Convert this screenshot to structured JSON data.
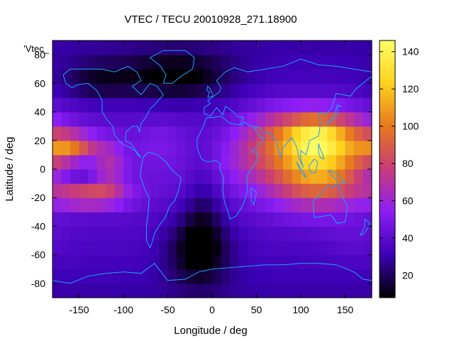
{
  "chart_data": {
    "type": "heatmap",
    "title": "VTEC / TECU 20010928_271.18900",
    "xlabel": "Longitude / deg",
    "ylabel": "Latitude / deg",
    "key_label": "'Vtec_",
    "xlim": [
      -180,
      180
    ],
    "ylim": [
      -90,
      90
    ],
    "x_ticks": [
      -150,
      -100,
      -50,
      0,
      50,
      100,
      150
    ],
    "y_ticks": [
      -80,
      -60,
      -40,
      -20,
      0,
      20,
      40,
      60,
      80
    ],
    "colorbar": {
      "range": [
        8,
        146
      ],
      "ticks": [
        20,
        40,
        60,
        80,
        100,
        120,
        140
      ]
    },
    "grid_step_deg": 10,
    "coastline_color": "#1ea0ff",
    "colormap": [
      "#000000",
      "#3c00b4",
      "#8c1ef5",
      "#c83c7a",
      "#e6781e",
      "#ffd21e",
      "#ffff64"
    ],
    "features": [
      {
        "lon": 125,
        "lat": 20,
        "sigma_lon": 42,
        "sigma_lat": 14,
        "value": 70
      },
      {
        "lon": 110,
        "lat": -5,
        "sigma_lon": 38,
        "sigma_lat": 16,
        "value": 45
      },
      {
        "lon": 135,
        "lat": -10,
        "sigma_lon": 28,
        "sigma_lat": 12,
        "value": 15
      },
      {
        "lon": 115,
        "lat": 25,
        "sigma_lon": 20,
        "sigma_lat": 10,
        "value": 25
      },
      {
        "lon": -160,
        "lat": 15,
        "sigma_lon": 22,
        "sigma_lat": 7,
        "value": 50
      },
      {
        "lon": -140,
        "lat": -18,
        "sigma_lon": 30,
        "sigma_lat": 6,
        "value": 45
      },
      {
        "lon": -115,
        "lat": 2,
        "sigma_lon": 12,
        "sigma_lat": 12,
        "value": 22
      },
      {
        "lon": -150,
        "lat": 0,
        "sigma_lon": 15,
        "sigma_lat": 10,
        "value": -10
      },
      {
        "lon": -15,
        "lat": -55,
        "sigma_lon": 25,
        "sigma_lat": 18,
        "value": -30
      },
      {
        "lon": -10,
        "lat": -25,
        "sigma_lon": 14,
        "sigma_lat": 25,
        "value": -12
      },
      {
        "lon": -40,
        "lat": 65,
        "sigma_lon": 45,
        "sigma_lat": 12,
        "value": -28
      },
      {
        "lon": -130,
        "lat": 62,
        "sigma_lon": 30,
        "sigma_lat": 10,
        "value": -18
      },
      {
        "lon": 40,
        "lat": 10,
        "sigma_lon": 25,
        "sigma_lat": 15,
        "value": 12
      },
      {
        "lon": 70,
        "lat": 25,
        "sigma_lon": 25,
        "sigma_lat": 15,
        "value": 15
      },
      {
        "lon": -60,
        "lat": 20,
        "sigma_lon": 20,
        "sigma_lat": 10,
        "value": 8
      },
      {
        "lon": 160,
        "lat": -50,
        "sigma_lon": 25,
        "sigma_lat": 12,
        "value": 5
      }
    ],
    "coastlines": [
      {
        "name": "north-america",
        "points": [
          [
            -168,
            66
          ],
          [
            -160,
            70
          ],
          [
            -140,
            70
          ],
          [
            -125,
            70
          ],
          [
            -110,
            68
          ],
          [
            -95,
            72
          ],
          [
            -85,
            68
          ],
          [
            -80,
            62
          ],
          [
            -90,
            58
          ],
          [
            -80,
            52
          ],
          [
            -70,
            60
          ],
          [
            -62,
            58
          ],
          [
            -55,
            52
          ],
          [
            -65,
            45
          ],
          [
            -70,
            42
          ],
          [
            -75,
            36
          ],
          [
            -80,
            32
          ],
          [
            -82,
            26
          ],
          [
            -84,
            30
          ],
          [
            -90,
            30
          ],
          [
            -97,
            26
          ],
          [
            -98,
            20
          ],
          [
            -92,
            18
          ],
          [
            -88,
            15
          ],
          [
            -84,
            10
          ],
          [
            -80,
            8
          ],
          [
            -85,
            12
          ],
          [
            -92,
            15
          ],
          [
            -100,
            17
          ],
          [
            -105,
            20
          ],
          [
            -110,
            24
          ],
          [
            -112,
            30
          ],
          [
            -118,
            34
          ],
          [
            -124,
            40
          ],
          [
            -124,
            48
          ],
          [
            -130,
            55
          ],
          [
            -140,
            60
          ],
          [
            -152,
            59
          ],
          [
            -158,
            57
          ],
          [
            -165,
            60
          ],
          [
            -168,
            66
          ]
        ]
      },
      {
        "name": "greenland",
        "points": [
          [
            -55,
            60
          ],
          [
            -45,
            60
          ],
          [
            -35,
            65
          ],
          [
            -22,
            70
          ],
          [
            -20,
            78
          ],
          [
            -30,
            83
          ],
          [
            -55,
            83
          ],
          [
            -70,
            78
          ],
          [
            -58,
            72
          ],
          [
            -52,
            66
          ],
          [
            -55,
            60
          ]
        ]
      },
      {
        "name": "south-america",
        "points": [
          [
            -78,
            8
          ],
          [
            -72,
            12
          ],
          [
            -62,
            10
          ],
          [
            -52,
            5
          ],
          [
            -45,
            -1
          ],
          [
            -35,
            -6
          ],
          [
            -38,
            -15
          ],
          [
            -42,
            -22
          ],
          [
            -48,
            -26
          ],
          [
            -53,
            -34
          ],
          [
            -58,
            -38
          ],
          [
            -65,
            -45
          ],
          [
            -68,
            -52
          ],
          [
            -70,
            -55
          ],
          [
            -74,
            -50
          ],
          [
            -74,
            -40
          ],
          [
            -72,
            -30
          ],
          [
            -71,
            -20
          ],
          [
            -76,
            -14
          ],
          [
            -81,
            -5
          ],
          [
            -80,
            1
          ],
          [
            -78,
            8
          ]
        ]
      },
      {
        "name": "africa-eurasia",
        "points": [
          [
            -17,
            15
          ],
          [
            -17,
            21
          ],
          [
            -10,
            30
          ],
          [
            -6,
            36
          ],
          [
            0,
            36
          ],
          [
            10,
            37
          ],
          [
            20,
            32
          ],
          [
            32,
            31
          ],
          [
            35,
            36
          ],
          [
            28,
            37
          ],
          [
            24,
            40
          ],
          [
            15,
            44
          ],
          [
            12,
            38
          ],
          [
            5,
            43
          ],
          [
            -2,
            37
          ],
          [
            -9,
            39
          ],
          [
            -9,
            43
          ],
          [
            -2,
            46
          ],
          [
            -5,
            48
          ],
          [
            2,
            51
          ],
          [
            8,
            54
          ],
          [
            10,
            57
          ],
          [
            5,
            62
          ],
          [
            15,
            68
          ],
          [
            25,
            71
          ],
          [
            40,
            68
          ],
          [
            60,
            70
          ],
          [
            80,
            72
          ],
          [
            100,
            77
          ],
          [
            120,
            73
          ],
          [
            140,
            72
          ],
          [
            160,
            70
          ],
          [
            180,
            68
          ],
          [
            180,
            65
          ],
          [
            170,
            60
          ],
          [
            162,
            56
          ],
          [
            156,
            51
          ],
          [
            140,
            53
          ],
          [
            135,
            43
          ],
          [
            128,
            38
          ],
          [
            121,
            40
          ],
          [
            122,
            31
          ],
          [
            120,
            23
          ],
          [
            110,
            20
          ],
          [
            106,
            10
          ],
          [
            100,
            13
          ],
          [
            100,
            7
          ],
          [
            103,
            1
          ],
          [
            98,
            8
          ],
          [
            95,
            16
          ],
          [
            90,
            22
          ],
          [
            80,
            15
          ],
          [
            77,
            8
          ],
          [
            72,
            20
          ],
          [
            66,
            25
          ],
          [
            57,
            25
          ],
          [
            56,
            27
          ],
          [
            50,
            30
          ],
          [
            48,
            28
          ],
          [
            55,
            22
          ],
          [
            59,
            22
          ],
          [
            52,
            16
          ],
          [
            44,
            12
          ],
          [
            51,
            12
          ],
          [
            50,
            5
          ],
          [
            40,
            -4
          ],
          [
            39,
            -10
          ],
          [
            40,
            -15
          ],
          [
            35,
            -25
          ],
          [
            32,
            -28
          ],
          [
            27,
            -33
          ],
          [
            20,
            -35
          ],
          [
            18,
            -30
          ],
          [
            14,
            -23
          ],
          [
            12,
            -15
          ],
          [
            13,
            -6
          ],
          [
            9,
            -1
          ],
          [
            9,
            4
          ],
          [
            4,
            6
          ],
          [
            -5,
            5
          ],
          [
            -12,
            7
          ],
          [
            -17,
            15
          ]
        ]
      },
      {
        "name": "arabia-gulf",
        "points": [
          [
            33,
            30
          ],
          [
            36,
            33
          ],
          [
            44,
            30
          ],
          [
            48,
            30
          ],
          [
            50,
            28
          ]
        ]
      },
      {
        "name": "madagascar",
        "points": [
          [
            44,
            -13
          ],
          [
            50,
            -16
          ],
          [
            47,
            -25
          ],
          [
            44,
            -22
          ],
          [
            44,
            -13
          ]
        ]
      },
      {
        "name": "australia",
        "points": [
          [
            114,
            -22
          ],
          [
            122,
            -18
          ],
          [
            130,
            -12
          ],
          [
            137,
            -12
          ],
          [
            142,
            -11
          ],
          [
            146,
            -19
          ],
          [
            153,
            -26
          ],
          [
            150,
            -37
          ],
          [
            141,
            -38
          ],
          [
            134,
            -32
          ],
          [
            125,
            -33
          ],
          [
            115,
            -34
          ],
          [
            114,
            -22
          ]
        ]
      },
      {
        "name": "new-zealand",
        "points": [
          [
            172,
            -35
          ],
          [
            178,
            -38
          ],
          [
            175,
            -42
          ],
          [
            170,
            -46
          ],
          [
            167,
            -46
          ],
          [
            172,
            -41
          ],
          [
            172,
            -35
          ]
        ]
      },
      {
        "name": "borneo",
        "points": [
          [
            109,
            2
          ],
          [
            115,
            7
          ],
          [
            119,
            5
          ],
          [
            117,
            -2
          ],
          [
            112,
            -3
          ],
          [
            109,
            2
          ]
        ]
      },
      {
        "name": "sumatra",
        "points": [
          [
            95,
            5
          ],
          [
            104,
            -3
          ],
          [
            106,
            -6
          ],
          [
            101,
            -3
          ],
          [
            95,
            5
          ]
        ]
      },
      {
        "name": "new-guinea",
        "points": [
          [
            131,
            -1
          ],
          [
            141,
            -3
          ],
          [
            150,
            -10
          ],
          [
            142,
            -9
          ],
          [
            136,
            -5
          ],
          [
            131,
            -1
          ]
        ]
      },
      {
        "name": "japan",
        "points": [
          [
            130,
            31
          ],
          [
            135,
            34
          ],
          [
            140,
            36
          ],
          [
            142,
            41
          ],
          [
            140,
            43
          ],
          [
            145,
            44
          ],
          [
            141,
            45
          ],
          [
            139,
            40
          ],
          [
            135,
            35
          ],
          [
            130,
            33
          ],
          [
            130,
            31
          ]
        ]
      },
      {
        "name": "uk",
        "points": [
          [
            -5,
            50
          ],
          [
            1,
            51
          ],
          [
            0,
            53
          ],
          [
            -2,
            56
          ],
          [
            -5,
            58
          ],
          [
            -6,
            55
          ],
          [
            -3,
            54
          ],
          [
            -5,
            50
          ]
        ]
      },
      {
        "name": "philippines",
        "points": [
          [
            120,
            18
          ],
          [
            122,
            14
          ],
          [
            125,
            10
          ],
          [
            126,
            7
          ],
          [
            122,
            8
          ],
          [
            120,
            12
          ],
          [
            120,
            18
          ]
        ]
      },
      {
        "name": "antarctica",
        "points": [
          [
            -180,
            -78
          ],
          [
            -160,
            -80
          ],
          [
            -140,
            -75
          ],
          [
            -120,
            -73
          ],
          [
            -100,
            -72
          ],
          [
            -80,
            -73
          ],
          [
            -65,
            -66
          ],
          [
            -60,
            -70
          ],
          [
            -50,
            -78
          ],
          [
            -30,
            -77
          ],
          [
            -15,
            -72
          ],
          [
            0,
            -70
          ],
          [
            20,
            -69
          ],
          [
            40,
            -68
          ],
          [
            60,
            -67
          ],
          [
            80,
            -67
          ],
          [
            100,
            -66
          ],
          [
            120,
            -66
          ],
          [
            140,
            -67
          ],
          [
            160,
            -72
          ],
          [
            170,
            -77
          ],
          [
            180,
            -78
          ]
        ]
      }
    ]
  }
}
